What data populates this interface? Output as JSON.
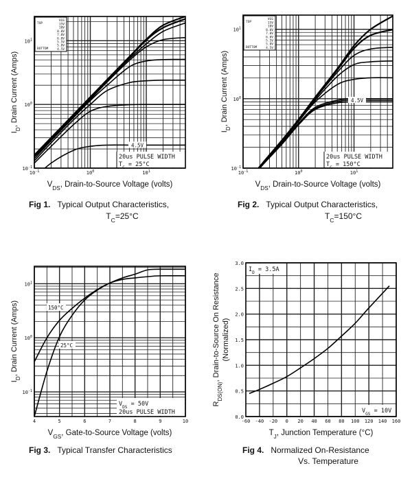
{
  "chart_data": [
    {
      "type": "line",
      "xscale": "log",
      "yscale": "log",
      "xlim": [
        0.1,
        50
      ],
      "ylim": [
        0.1,
        24
      ],
      "grid": true,
      "xlabel": {
        "main": "V",
        "sub": "DS",
        "rest": ", Drain-to-Source Voltage (volts)"
      },
      "ylabel": {
        "main": "I",
        "sub": "D",
        "rest": ", Drain Current (Amps)"
      },
      "xticks": [
        {
          "value": 0.1,
          "base": "10",
          "exp": "-1"
        },
        {
          "value": 1,
          "base": "10",
          "exp": "0"
        },
        {
          "value": 10,
          "base": "10",
          "exp": "1"
        }
      ],
      "yticks": [
        {
          "value": 0.1,
          "base": "10",
          "exp": "-1"
        },
        {
          "value": 1,
          "base": "10",
          "exp": "0"
        },
        {
          "value": 10,
          "base": "10",
          "exp": "1"
        }
      ],
      "legend": {
        "placement": "top-left",
        "top_label": "TOP",
        "bottom_label": "BOTTOM",
        "header": "VGS",
        "entries": [
          "15V",
          "10V",
          "8.0V",
          "7.0V",
          "6.0V",
          "5.5V",
          "5.0V",
          "4.5V"
        ]
      },
      "annotations": {
        "curve_label": "4.5V",
        "pulse": "20us PULSE WIDTH",
        "cond_main": "T",
        "cond_sub": "C",
        "cond_rest": " = 25°C"
      },
      "caption": {
        "fig": "Fig 1.",
        "text": "Typical Output Characteristics,",
        "l2_main": "T",
        "l2_sub": "C",
        "l2_rest": "=25°C"
      },
      "x": [
        0.1,
        0.2,
        0.5,
        1,
        2,
        5,
        10,
        20,
        50
      ],
      "series": [
        {
          "name": "15V",
          "values": [
            0.16,
            0.3,
            0.69,
            1.3,
            2.45,
            5.6,
            10.5,
            17.5,
            24
          ]
        },
        {
          "name": "10V",
          "values": [
            0.16,
            0.3,
            0.69,
            1.3,
            2.4,
            5.5,
            10.2,
            16,
            22
          ]
        },
        {
          "name": "8.0V",
          "values": [
            0.155,
            0.29,
            0.67,
            1.25,
            2.35,
            5.2,
            8.9,
            14,
            19
          ]
        },
        {
          "name": "7.0V",
          "values": [
            0.15,
            0.28,
            0.65,
            1.2,
            2.25,
            4.9,
            8.0,
            10.4,
            11.2
          ]
        },
        {
          "name": "6.0V",
          "values": [
            0.14,
            0.27,
            0.62,
            1.15,
            2.0,
            3.9,
            4.8,
            5.05,
            5.1
          ]
        },
        {
          "name": "5.5V",
          "values": [
            0.13,
            0.25,
            0.57,
            1.0,
            1.65,
            2.2,
            2.35,
            2.4,
            2.4
          ]
        },
        {
          "name": "5.0V",
          "values": [
            0.12,
            0.22,
            0.48,
            0.78,
            0.93,
            0.99,
            1.0,
            1.0,
            1.0
          ]
        },
        {
          "name": "4.5V",
          "values": [
            0.07,
            0.12,
            0.19,
            0.22,
            0.23,
            0.23,
            0.23,
            0.23,
            0.23
          ]
        }
      ]
    },
    {
      "type": "line",
      "xscale": "log",
      "yscale": "log",
      "xlim": [
        0.1,
        50
      ],
      "ylim": [
        0.1,
        16
      ],
      "grid": true,
      "xlabel": {
        "main": "V",
        "sub": "DS",
        "rest": ", Drain-to-Source Voltage (volts)"
      },
      "ylabel": {
        "main": "I",
        "sub": "D",
        "rest": ", Drain Current (Amps)"
      },
      "xticks": [
        {
          "value": 0.1,
          "base": "10",
          "exp": "-1"
        },
        {
          "value": 1,
          "base": "10",
          "exp": "0"
        },
        {
          "value": 10,
          "base": "10",
          "exp": "1"
        }
      ],
      "yticks": [
        {
          "value": 0.1,
          "base": "10",
          "exp": "-1"
        },
        {
          "value": 1,
          "base": "10",
          "exp": "0"
        },
        {
          "value": 10,
          "base": "10",
          "exp": "1"
        }
      ],
      "legend": {
        "placement": "top-left",
        "top_label": "TOP",
        "bottom_label": "BOTTOM",
        "header": "VGS",
        "entries": [
          "15V",
          "10V",
          "8.0V",
          "7.0V",
          "6.0V",
          "5.5V",
          "5.0V",
          "4.5V"
        ]
      },
      "annotations": {
        "curve_label": "4.5V",
        "pulse": "20us PULSE WIDTH",
        "cond_main": "T",
        "cond_sub": "C",
        "cond_rest": " = 150°C"
      },
      "caption": {
        "fig": "Fig 2.",
        "text": "Typical Output Characteristics,",
        "l2_main": "T",
        "l2_sub": "C",
        "l2_rest": "=150°C"
      },
      "x": [
        0.1,
        0.2,
        0.5,
        1,
        2,
        5,
        10,
        20,
        50
      ],
      "series": [
        {
          "name": "15V",
          "values": [
            0.05,
            0.105,
            0.25,
            0.5,
            1.05,
            2.7,
            5.8,
            10,
            15.5
          ]
        },
        {
          "name": "10V",
          "values": [
            0.05,
            0.105,
            0.25,
            0.5,
            1.04,
            2.6,
            5.3,
            8.2,
            9.9
          ]
        },
        {
          "name": "8.0V",
          "values": [
            0.05,
            0.1,
            0.25,
            0.49,
            1.0,
            2.4,
            4.2,
            5.2,
            5.5
          ]
        },
        {
          "name": "7.0V",
          "values": [
            0.05,
            0.1,
            0.24,
            0.48,
            0.95,
            2.1,
            3.1,
            3.4,
            3.5
          ]
        },
        {
          "name": "6.0V",
          "values": [
            0.05,
            0.1,
            0.24,
            0.47,
            0.9,
            1.6,
            1.9,
            2.0,
            2.0
          ]
        },
        {
          "name": "5.5V",
          "values": [
            0.05,
            0.1,
            0.23,
            0.44,
            0.75,
            0.95,
            1.0,
            1.0,
            1.0
          ]
        },
        {
          "name": "5.0V",
          "values": [
            0.05,
            0.1,
            0.23,
            0.43,
            0.72,
            0.91,
            0.95,
            0.95,
            0.95
          ]
        },
        {
          "name": "4.5V",
          "values": [
            0.05,
            0.1,
            0.22,
            0.42,
            0.7,
            0.87,
            0.9,
            0.9,
            0.9
          ]
        }
      ]
    },
    {
      "type": "line",
      "xscale": "linear",
      "yscale": "log",
      "xlim": [
        4,
        10
      ],
      "ylim": [
        0.035,
        21
      ],
      "grid": true,
      "xlabel": {
        "main": "V",
        "sub": "GS",
        "rest": ", Gate-to-Source Voltage (volts)"
      },
      "ylabel": {
        "main": "I",
        "sub": "D",
        "rest": ", Drain Current (Amps)"
      },
      "xticks": [
        {
          "value": 4,
          "base": "4"
        },
        {
          "value": 5,
          "base": "5"
        },
        {
          "value": 6,
          "base": "6"
        },
        {
          "value": 7,
          "base": "7"
        },
        {
          "value": 8,
          "base": "8"
        },
        {
          "value": 9,
          "base": "9"
        },
        {
          "value": 10,
          "base": "10"
        }
      ],
      "yticks": [
        {
          "value": 0.1,
          "base": "10",
          "exp": "-1"
        },
        {
          "value": 1,
          "base": "10",
          "exp": "0"
        },
        {
          "value": 10,
          "base": "10",
          "exp": "1"
        }
      ],
      "annotations": {
        "vds_main": "V",
        "vds_sub": "DS",
        "vds_rest": " = 50V",
        "pulse": "20us PULSE WIDTH"
      },
      "caption": {
        "fig": "Fig 3.",
        "text": "Typical Transfer Characteristics"
      },
      "x": [
        4,
        4.5,
        5,
        5.5,
        6,
        6.5,
        7,
        7.5,
        8,
        8.5,
        9,
        10
      ],
      "series": [
        {
          "name": "150°C",
          "values": [
            0.36,
            1.0,
            2.1,
            3.5,
            5.4,
            7.8,
            10.3,
            12,
            12.8,
            13.5,
            14,
            14
          ]
        },
        {
          "name": "25°C",
          "values": [
            0.035,
            0.24,
            1.05,
            2.6,
            5.0,
            7.6,
            10.3,
            12.8,
            15,
            18,
            18.5,
            18.5
          ]
        }
      ]
    },
    {
      "type": "line",
      "xscale": "linear",
      "yscale": "linear",
      "xlim": [
        -60,
        160
      ],
      "ylim": [
        0,
        3.0
      ],
      "grid": true,
      "xlabel": {
        "main": "T",
        "sub": "J",
        "rest": ", Junction Temperature (°C)"
      },
      "ylabel": {
        "main": "R",
        "sub": "DS(ON)",
        "rest": ", Drain-to-Source On Resistance",
        "line2": "(Normalized)"
      },
      "xticks": [
        {
          "value": -60,
          "base": "-60"
        },
        {
          "value": -40,
          "base": "-40"
        },
        {
          "value": -20,
          "base": "-20"
        },
        {
          "value": 0,
          "base": "0"
        },
        {
          "value": 20,
          "base": "20"
        },
        {
          "value": 40,
          "base": "40"
        },
        {
          "value": 60,
          "base": "60"
        },
        {
          "value": 80,
          "base": "80"
        },
        {
          "value": 100,
          "base": "100"
        },
        {
          "value": 120,
          "base": "120"
        },
        {
          "value": 140,
          "base": "140"
        },
        {
          "value": 160,
          "base": "160"
        }
      ],
      "yticks": [
        {
          "value": 0,
          "base": "0.0"
        },
        {
          "value": 0.5,
          "base": "0.5"
        },
        {
          "value": 1.0,
          "base": "1.0"
        },
        {
          "value": 1.5,
          "base": "1.5"
        },
        {
          "value": 2.0,
          "base": "2.0"
        },
        {
          "value": 2.5,
          "base": "2.5"
        },
        {
          "value": 3.0,
          "base": "3.0"
        }
      ],
      "annotations": {
        "id_main": "I",
        "id_sub": "D",
        "id_rest": " = 3.5A",
        "vgs_main": "V",
        "vgs_sub": "GS",
        "vgs_rest": " = 10V"
      },
      "caption": {
        "fig": "Fig 4.",
        "text": "Normalized On-Resistance",
        "line2": "Vs. Temperature"
      },
      "x": [
        -55,
        -40,
        -20,
        0,
        20,
        40,
        60,
        80,
        100,
        120,
        150
      ],
      "series": [
        {
          "values": [
            0.45,
            0.53,
            0.65,
            0.78,
            0.95,
            1.13,
            1.33,
            1.57,
            1.82,
            2.12,
            2.55
          ]
        }
      ]
    }
  ]
}
